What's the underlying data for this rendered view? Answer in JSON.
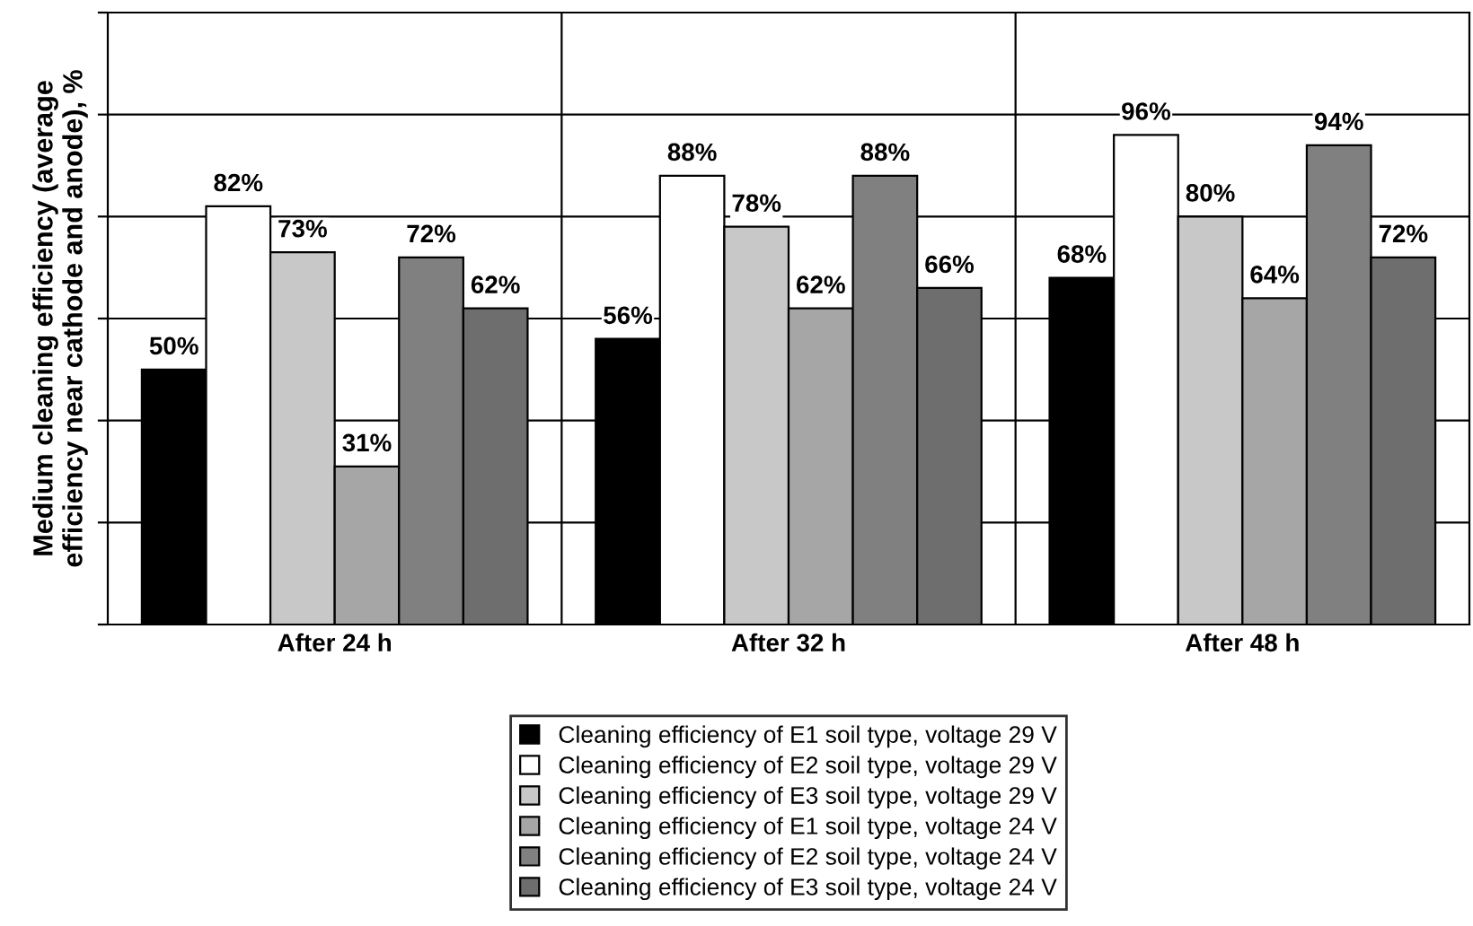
{
  "chart_data": {
    "type": "bar",
    "ylabel": "Medium cleaning efficiency (average\nefficiency near cathode and anode), %",
    "categories": [
      "After 24 h",
      "After 32 h",
      "After 48 h"
    ],
    "series": [
      {
        "name": "Cleaning efficiency of E1 soil type, voltage 29 V",
        "color": "#000000",
        "values": [
          50,
          56,
          68
        ],
        "value_labels": [
          "50%",
          "56%",
          "68%"
        ]
      },
      {
        "name": "Cleaning efficiency of E2 soil type, voltage 29 V",
        "color": "#ffffff",
        "values": [
          82,
          88,
          96
        ],
        "value_labels": [
          "82%",
          "88%",
          "96%"
        ]
      },
      {
        "name": "Cleaning efficiency of E3 soil type, voltage 29 V",
        "color": "#c8c8c8",
        "values": [
          73,
          78,
          80
        ],
        "value_labels": [
          "73%",
          "78%",
          "80%"
        ]
      },
      {
        "name": "Cleaning efficiency of E1 soil type, voltage 24 V",
        "color": "#a6a6a6",
        "values": [
          31,
          62,
          64
        ],
        "value_labels": [
          "31%",
          "62%",
          "64%"
        ]
      },
      {
        "name": "Cleaning efficiency of E2 soil type, voltage 24 V",
        "color": "#808080",
        "values": [
          72,
          88,
          94
        ],
        "value_labels": [
          "72%",
          "88%",
          "94%"
        ]
      },
      {
        "name": "Cleaning efficiency of E3 soil type, voltage 24 V",
        "color": "#6e6e6e",
        "values": [
          62,
          66,
          72
        ],
        "value_labels": [
          "62%",
          "66%",
          "72%"
        ]
      }
    ],
    "ylim": [
      0,
      120
    ],
    "yticks": [
      {
        "value": 0,
        "label": null
      },
      {
        "value": 20,
        "label": null
      },
      {
        "value": 40,
        "label": null
      },
      {
        "value": 60,
        "label": null
      },
      {
        "value": 80,
        "label": null
      },
      {
        "value": 100,
        "label": null
      },
      {
        "value": 120,
        "label": null
      }
    ],
    "tick_labels": "x",
    "grid": "y",
    "legend": "bottom"
  }
}
